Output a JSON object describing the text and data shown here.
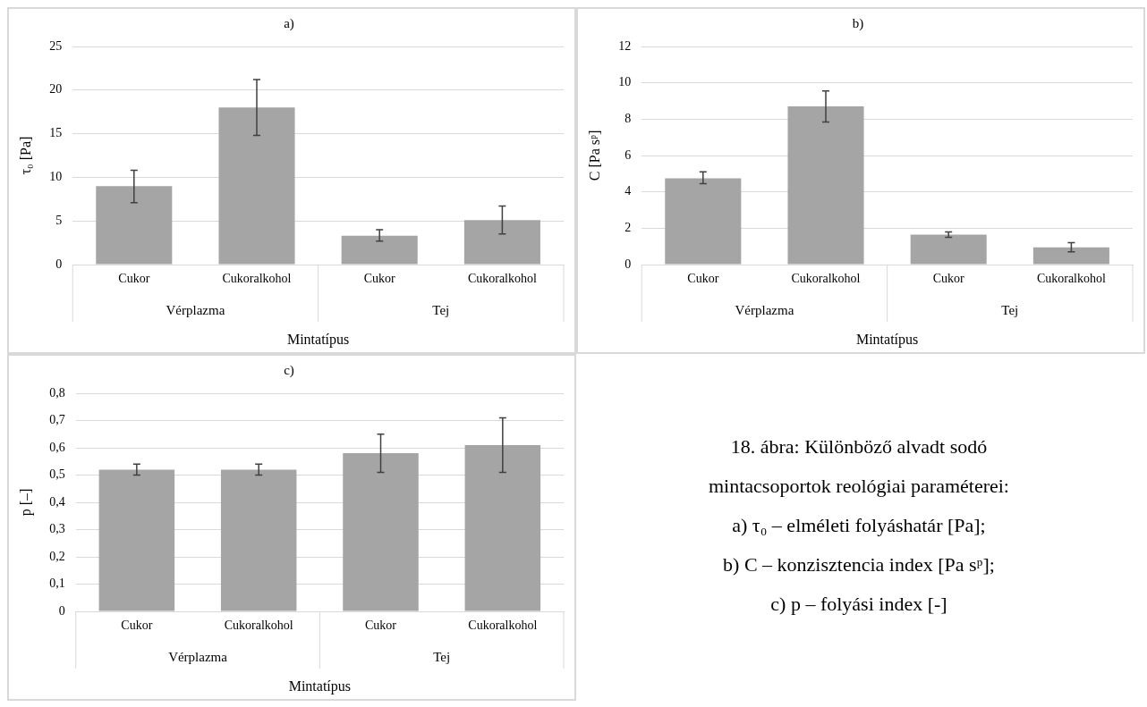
{
  "chart_data": [
    {
      "type": "bar",
      "title": "a)",
      "xlabel": "Mintatípus",
      "ylabel": "τ₀ [Pa]",
      "categories": [
        "Cukor",
        "Cukoralkohol",
        "Cukor",
        "Cukoralkohol"
      ],
      "values": [
        9.0,
        18.0,
        3.3,
        5.1
      ],
      "errors": [
        [
          7.1,
          10.8
        ],
        [
          14.8,
          21.2
        ],
        [
          2.7,
          4.0
        ],
        [
          3.5,
          6.7
        ]
      ],
      "color": "#a5a5a5",
      "ylim": [
        0,
        25
      ],
      "yticks": [
        0,
        5,
        10,
        15,
        20,
        25
      ],
      "grid": "y",
      "legend": false,
      "annotations": [
        "Vérplazma",
        "Tej"
      ]
    },
    {
      "type": "bar",
      "title": "b)",
      "xlabel": "Mintatípus",
      "ylabel": "C [Pa sᵖ]",
      "categories": [
        "Cukor",
        "Cukoralkohol",
        "Cukor",
        "Cukoralkohol"
      ],
      "values": [
        4.75,
        8.7,
        1.65,
        0.95
      ],
      "errors": [
        [
          4.45,
          5.1
        ],
        [
          7.85,
          9.55
        ],
        [
          1.5,
          1.8
        ],
        [
          0.7,
          1.2
        ]
      ],
      "color": "#a5a5a5",
      "ylim": [
        0,
        12
      ],
      "yticks": [
        0,
        2,
        4,
        6,
        8,
        10,
        12
      ],
      "grid": "y",
      "legend": false,
      "annotations": [
        "Vérplazma",
        "Tej"
      ]
    },
    {
      "type": "bar",
      "title": "c)",
      "xlabel": "Mintatípus",
      "ylabel": "p [–]",
      "categories": [
        "Cukor",
        "Cukoralkohol",
        "Cukor",
        "Cukoralkohol"
      ],
      "values": [
        0.52,
        0.52,
        0.58,
        0.61
      ],
      "errors": [
        [
          0.5,
          0.54
        ],
        [
          0.5,
          0.54
        ],
        [
          0.51,
          0.65
        ],
        [
          0.51,
          0.71
        ]
      ],
      "color": "#a5a5a5",
      "ylim": [
        0,
        0.8
      ],
      "yticks": [
        0,
        {
          "value": 0.1,
          "label": "0,1"
        },
        {
          "value": 0.2,
          "label": "0,2"
        },
        {
          "value": 0.3,
          "label": "0,3"
        },
        {
          "value": 0.4,
          "label": "0,4"
        },
        {
          "value": 0.5,
          "label": "0,5"
        },
        {
          "value": 0.6,
          "label": "0,6"
        },
        {
          "value": 0.7,
          "label": "0,7"
        },
        {
          "value": 0.8,
          "label": "0,8"
        }
      ],
      "grid": "y",
      "legend": false,
      "annotations": [
        "Vérplazma",
        "Tej"
      ]
    },
    {
      "type": "other",
      "annotations": [
        "18. ábra: Különböző alvadt sodó",
        "mintacsoportok reológiai paraméterei:",
        "a) τ₀ – elméleti folyáshatár [Pa];",
        "b) C – konzisztencia index [Pa sᵖ];",
        "c) p – folyási index [-]"
      ]
    }
  ]
}
